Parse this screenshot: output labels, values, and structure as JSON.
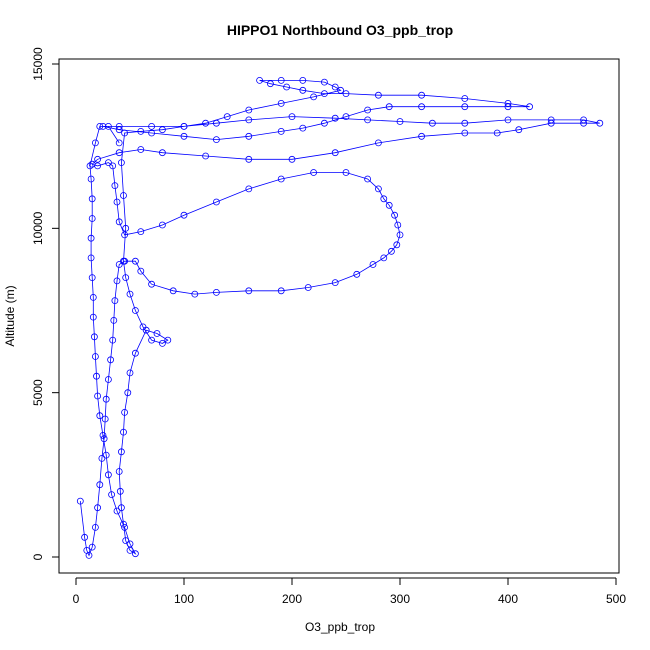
{
  "chart_data": {
    "type": "scatter",
    "title": "HIPPO1 Northbound O3_ppb_trop",
    "xlabel": "O3_ppb_trop",
    "ylabel": "Altitude (m)",
    "xlim": [
      0,
      500
    ],
    "ylim": [
      0,
      15000
    ],
    "x_ticks": [
      0,
      100,
      200,
      300,
      400,
      500
    ],
    "y_ticks": [
      0,
      5000,
      10000,
      15000
    ],
    "x_tick_labels": [
      "0",
      "100",
      "200",
      "300",
      "400",
      "500"
    ],
    "y_tick_labels": [
      "0",
      "5000",
      "10000",
      "15000"
    ],
    "grid": false,
    "legend": "none",
    "marker": "open-circle",
    "connected": true,
    "color": "#0000ff",
    "series": [
      {
        "points": [
          [
            4,
            1700
          ],
          [
            8,
            600
          ],
          [
            10,
            200
          ],
          [
            12,
            50
          ],
          [
            15,
            300
          ],
          [
            18,
            900
          ],
          [
            20,
            1500
          ],
          [
            22,
            2200
          ],
          [
            24,
            3000
          ],
          [
            26,
            3600
          ],
          [
            27,
            4200
          ],
          [
            28,
            4800
          ],
          [
            30,
            5400
          ],
          [
            32,
            6000
          ],
          [
            34,
            6600
          ],
          [
            35,
            7200
          ],
          [
            36,
            7800
          ],
          [
            38,
            8400
          ],
          [
            40,
            8900
          ],
          [
            45,
            9000
          ],
          [
            55,
            9000
          ],
          [
            60,
            8700
          ],
          [
            70,
            8300
          ],
          [
            90,
            8100
          ],
          [
            110,
            8000
          ],
          [
            130,
            8050
          ],
          [
            160,
            8100
          ],
          [
            190,
            8100
          ],
          [
            215,
            8200
          ],
          [
            240,
            8350
          ],
          [
            260,
            8600
          ],
          [
            275,
            8900
          ],
          [
            285,
            9100
          ],
          [
            292,
            9300
          ],
          [
            297,
            9500
          ],
          [
            300,
            9800
          ],
          [
            298,
            10100
          ],
          [
            295,
            10400
          ],
          [
            290,
            10700
          ],
          [
            285,
            10900
          ],
          [
            280,
            11200
          ],
          [
            270,
            11500
          ],
          [
            250,
            11700
          ],
          [
            220,
            11700
          ],
          [
            190,
            11500
          ],
          [
            160,
            11200
          ],
          [
            130,
            10800
          ],
          [
            100,
            10400
          ],
          [
            80,
            10100
          ],
          [
            60,
            9900
          ],
          [
            45,
            9800
          ],
          [
            40,
            10200
          ],
          [
            38,
            10800
          ],
          [
            36,
            11300
          ],
          [
            34,
            11900
          ],
          [
            30,
            12000
          ],
          [
            20,
            11900
          ],
          [
            15,
            11950
          ],
          [
            20,
            12100
          ],
          [
            40,
            12300
          ],
          [
            60,
            12400
          ],
          [
            80,
            12300
          ],
          [
            120,
            12200
          ],
          [
            160,
            12100
          ],
          [
            200,
            12100
          ],
          [
            240,
            12300
          ],
          [
            280,
            12600
          ],
          [
            320,
            12800
          ],
          [
            360,
            12900
          ],
          [
            390,
            12900
          ],
          [
            410,
            13000
          ],
          [
            440,
            13200
          ],
          [
            470,
            13200
          ],
          [
            485,
            13200
          ],
          [
            470,
            13300
          ],
          [
            440,
            13300
          ],
          [
            400,
            13300
          ],
          [
            360,
            13200
          ],
          [
            330,
            13200
          ],
          [
            300,
            13250
          ],
          [
            270,
            13300
          ],
          [
            240,
            13350
          ],
          [
            200,
            13400
          ],
          [
            160,
            13300
          ],
          [
            130,
            13200
          ],
          [
            100,
            13100
          ],
          [
            70,
            13100
          ],
          [
            40,
            13100
          ],
          [
            25,
            13100
          ],
          [
            40,
            13000
          ],
          [
            70,
            12900
          ],
          [
            100,
            12800
          ],
          [
            130,
            12700
          ],
          [
            160,
            12800
          ],
          [
            190,
            12950
          ],
          [
            210,
            13050
          ],
          [
            230,
            13200
          ],
          [
            250,
            13400
          ],
          [
            270,
            13600
          ],
          [
            290,
            13700
          ],
          [
            320,
            13700
          ],
          [
            360,
            13700
          ],
          [
            400,
            13700
          ],
          [
            420,
            13700
          ],
          [
            400,
            13800
          ],
          [
            360,
            13950
          ],
          [
            320,
            14050
          ],
          [
            280,
            14050
          ],
          [
            250,
            14100
          ],
          [
            230,
            14100
          ],
          [
            210,
            14200
          ],
          [
            195,
            14300
          ],
          [
            180,
            14400
          ],
          [
            170,
            14500
          ],
          [
            190,
            14500
          ],
          [
            210,
            14500
          ],
          [
            230,
            14450
          ],
          [
            240,
            14300
          ],
          [
            245,
            14200
          ],
          [
            220,
            14000
          ],
          [
            190,
            13800
          ],
          [
            160,
            13600
          ],
          [
            140,
            13400
          ],
          [
            120,
            13200
          ],
          [
            100,
            13100
          ],
          [
            80,
            13000
          ],
          [
            60,
            12950
          ],
          [
            45,
            12900
          ],
          [
            42,
            12000
          ],
          [
            44,
            11000
          ],
          [
            46,
            10000
          ],
          [
            44,
            9000
          ],
          [
            46,
            8500
          ],
          [
            50,
            8000
          ],
          [
            55,
            7500
          ],
          [
            62,
            7000
          ],
          [
            70,
            6600
          ],
          [
            80,
            6500
          ],
          [
            85,
            6600
          ],
          [
            75,
            6800
          ],
          [
            65,
            6900
          ],
          [
            55,
            6200
          ],
          [
            50,
            5600
          ],
          [
            48,
            5000
          ],
          [
            45,
            4400
          ],
          [
            44,
            3800
          ],
          [
            42,
            3200
          ],
          [
            40,
            2600
          ],
          [
            41,
            2000
          ],
          [
            42,
            1500
          ],
          [
            44,
            1000
          ],
          [
            46,
            500
          ],
          [
            50,
            200
          ],
          [
            55,
            100
          ],
          [
            50,
            400
          ],
          [
            45,
            900
          ],
          [
            38,
            1400
          ],
          [
            33,
            1900
          ],
          [
            30,
            2500
          ],
          [
            28,
            3100
          ],
          [
            25,
            3700
          ],
          [
            22,
            4300
          ],
          [
            20,
            4900
          ],
          [
            19,
            5500
          ],
          [
            18,
            6100
          ],
          [
            17,
            6700
          ],
          [
            16,
            7300
          ],
          [
            16,
            7900
          ],
          [
            15,
            8500
          ],
          [
            14,
            9100
          ],
          [
            14,
            9700
          ],
          [
            15,
            10300
          ],
          [
            15,
            10900
          ],
          [
            14,
            11500
          ],
          [
            13,
            11900
          ],
          [
            18,
            12600
          ],
          [
            22,
            13100
          ],
          [
            30,
            13100
          ],
          [
            40,
            12600
          ]
        ]
      }
    ]
  }
}
